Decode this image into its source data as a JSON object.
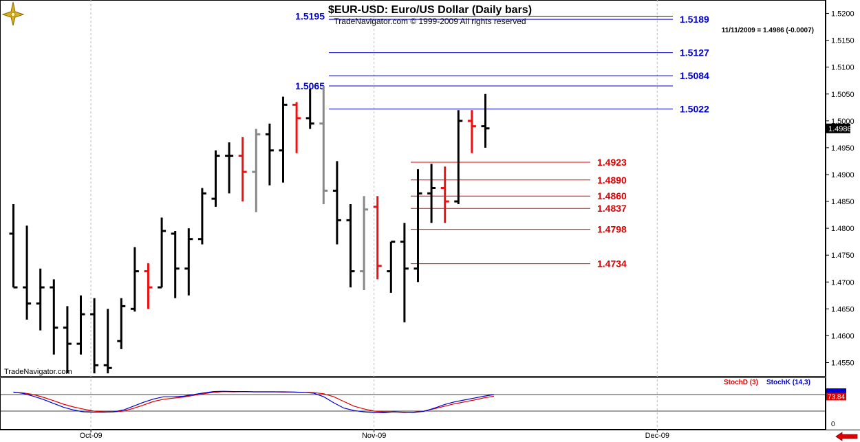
{
  "header": {
    "title": "$EUR-USD:  Euro/US Dollar  (Daily bars)",
    "subtitle": "TradeNavigator.com © 1999-2009 All rights reserved",
    "last_quote": "11/11/2009 = 1.4986 (-0.0007)",
    "watermark": "TradeNavigator.com"
  },
  "colors": {
    "up_bar": "#000000",
    "down_bar": "#ee1111",
    "neutral_bar": "#888888",
    "resistance": "#0000cc",
    "support": "#dd0000",
    "stoch_d": "#dd0000",
    "stoch_k": "#0000cc",
    "grid": "#bbbbbb",
    "frame": "#000000",
    "nav_arrow": "#dd0000"
  },
  "chart_data": [
    {
      "type": "ohlc",
      "title": "$EUR-USD:  Euro/US Dollar  (Daily bars)",
      "price_axis": {
        "ylim": [
          1.4525,
          1.5225
        ],
        "ticks": [
          "1.4550",
          "1.4600",
          "1.4650",
          "1.4700",
          "1.4750",
          "1.4800",
          "1.4850",
          "1.4900",
          "1.4950",
          "1.5000",
          "1.5050",
          "1.5100",
          "1.5150",
          "1.5200"
        ],
        "last_price_label": "1.4986",
        "last_price": 1.4986
      },
      "x_axis": {
        "labels": [
          "Oct-09",
          "Nov-09",
          "Dec-09"
        ],
        "label_index": [
          6,
          27,
          48
        ]
      },
      "bars": [
        {
          "o": 1.479,
          "h": 1.4845,
          "l": 1.469,
          "c": 1.469,
          "t": "k"
        },
        {
          "o": 1.469,
          "h": 1.4805,
          "l": 1.463,
          "c": 1.466,
          "t": "k"
        },
        {
          "o": 1.466,
          "h": 1.4725,
          "l": 1.461,
          "c": 1.469,
          "t": "k"
        },
        {
          "o": 1.469,
          "h": 1.4705,
          "l": 1.4565,
          "c": 1.4615,
          "t": "k"
        },
        {
          "o": 1.4615,
          "h": 1.4655,
          "l": 1.453,
          "c": 1.4585,
          "t": "k"
        },
        {
          "o": 1.4585,
          "h": 1.4675,
          "l": 1.4565,
          "c": 1.464,
          "t": "k"
        },
        {
          "o": 1.464,
          "h": 1.467,
          "l": 1.453,
          "c": 1.4545,
          "t": "k"
        },
        {
          "o": 1.4545,
          "h": 1.465,
          "l": 1.453,
          "c": 1.454,
          "t": "k"
        },
        {
          "o": 1.459,
          "h": 1.467,
          "l": 1.4575,
          "c": 1.4655,
          "t": "k"
        },
        {
          "o": 1.465,
          "h": 1.4765,
          "l": 1.4645,
          "c": 1.472,
          "t": "k"
        },
        {
          "o": 1.472,
          "h": 1.4735,
          "l": 1.465,
          "c": 1.469,
          "t": "r"
        },
        {
          "o": 1.469,
          "h": 1.482,
          "l": 1.469,
          "c": 1.4795,
          "t": "k"
        },
        {
          "o": 1.479,
          "h": 1.4795,
          "l": 1.467,
          "c": 1.4725,
          "t": "k"
        },
        {
          "o": 1.4725,
          "h": 1.48,
          "l": 1.4675,
          "c": 1.478,
          "t": "k"
        },
        {
          "o": 1.478,
          "h": 1.4875,
          "l": 1.477,
          "c": 1.4865,
          "t": "k"
        },
        {
          "o": 1.4855,
          "h": 1.4945,
          "l": 1.484,
          "c": 1.4935,
          "t": "k"
        },
        {
          "o": 1.4935,
          "h": 1.496,
          "l": 1.4865,
          "c": 1.4935,
          "t": "k"
        },
        {
          "o": 1.4935,
          "h": 1.497,
          "l": 1.485,
          "c": 1.4905,
          "t": "r"
        },
        {
          "o": 1.4905,
          "h": 1.4985,
          "l": 1.483,
          "c": 1.4975,
          "t": "g"
        },
        {
          "o": 1.4975,
          "h": 1.4995,
          "l": 1.488,
          "c": 1.4945,
          "t": "k"
        },
        {
          "o": 1.4945,
          "h": 1.5045,
          "l": 1.4885,
          "c": 1.503,
          "t": "k"
        },
        {
          "o": 1.503,
          "h": 1.5035,
          "l": 1.494,
          "c": 1.5005,
          "t": "r"
        },
        {
          "o": 1.5005,
          "h": 1.506,
          "l": 1.4985,
          "c": 1.4995,
          "t": "k"
        },
        {
          "o": 1.4995,
          "h": 1.5065,
          "l": 1.4845,
          "c": 1.487,
          "t": "g"
        },
        {
          "o": 1.487,
          "h": 1.4925,
          "l": 1.477,
          "c": 1.4815,
          "t": "k"
        },
        {
          "o": 1.4815,
          "h": 1.4845,
          "l": 1.469,
          "c": 1.472,
          "t": "k"
        },
        {
          "o": 1.472,
          "h": 1.486,
          "l": 1.4685,
          "c": 1.4835,
          "t": "g"
        },
        {
          "o": 1.484,
          "h": 1.486,
          "l": 1.4705,
          "c": 1.473,
          "t": "r"
        },
        {
          "o": 1.472,
          "h": 1.4775,
          "l": 1.468,
          "c": 1.4775,
          "t": "k"
        },
        {
          "o": 1.4775,
          "h": 1.481,
          "l": 1.4625,
          "c": 1.4725,
          "t": "k"
        },
        {
          "o": 1.4725,
          "h": 1.491,
          "l": 1.47,
          "c": 1.4865,
          "t": "k"
        },
        {
          "o": 1.4865,
          "h": 1.492,
          "l": 1.481,
          "c": 1.4875,
          "t": "k"
        },
        {
          "o": 1.4875,
          "h": 1.4915,
          "l": 1.481,
          "c": 1.485,
          "t": "r"
        },
        {
          "o": 1.485,
          "h": 1.502,
          "l": 1.4845,
          "c": 1.5,
          "t": "k"
        },
        {
          "o": 1.5,
          "h": 1.502,
          "l": 1.494,
          "c": 1.499,
          "t": "r"
        },
        {
          "o": 1.499,
          "h": 1.505,
          "l": 1.495,
          "c": 1.4986,
          "t": "k"
        }
      ],
      "resistance_levels": [
        "1.5195",
        "1.5189",
        "1.5127",
        "1.5084",
        "1.5065",
        "1.5022"
      ],
      "support_levels": [
        "1.4923",
        "1.4890",
        "1.4860",
        "1.4837",
        "1.4798",
        "1.4734"
      ],
      "grid": "vertical dotted at month starts"
    },
    {
      "type": "line",
      "title": "",
      "legend": [
        "StochD (3)",
        "StochK (14,3)"
      ],
      "ylim": [
        0,
        100
      ],
      "y_tick": "0",
      "last_values": {
        "stoch_d": "73.84"
      },
      "series": [
        {
          "name": "StochD (3)",
          "color": "#dd0000",
          "values": [
            88,
            86,
            80,
            70,
            58,
            45,
            35,
            27,
            20,
            17,
            17,
            20,
            30,
            42,
            55,
            63,
            67,
            71,
            77,
            83,
            88,
            91,
            90,
            91,
            90,
            90,
            90,
            89,
            89,
            88,
            87,
            83,
            72,
            55,
            38,
            28,
            20,
            17,
            17,
            15,
            16,
            20,
            28,
            37,
            46,
            53,
            60,
            68,
            74
          ]
        },
        {
          "name": "StochK (14,3)",
          "color": "#0000cc",
          "values": [
            89,
            84,
            74,
            62,
            48,
            34,
            24,
            17,
            16,
            16,
            17,
            24,
            38,
            52,
            64,
            72,
            72,
            74,
            80,
            86,
            91,
            92,
            91,
            91,
            90,
            90,
            90,
            90,
            89,
            88,
            85,
            72,
            50,
            31,
            22,
            17,
            14,
            14,
            17,
            16,
            15,
            19,
            30,
            43,
            53,
            60,
            67,
            74,
            80
          ]
        }
      ]
    }
  ]
}
